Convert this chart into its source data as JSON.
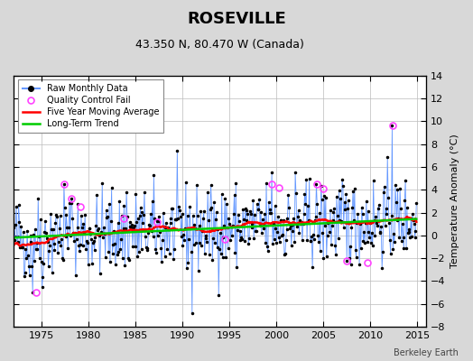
{
  "title": "ROSEVILLE",
  "subtitle": "43.350 N, 80.470 W (Canada)",
  "ylabel": "Temperature Anomaly (°C)",
  "credit": "Berkeley Earth",
  "ylim": [
    -8,
    14
  ],
  "yticks": [
    -8,
    -6,
    -4,
    -2,
    0,
    2,
    4,
    6,
    8,
    10,
    12,
    14
  ],
  "xlim": [
    1972,
    2016
  ],
  "xticks": [
    1975,
    1980,
    1985,
    1990,
    1995,
    2000,
    2005,
    2010,
    2015
  ],
  "bg_color": "#d8d8d8",
  "plot_bg_color": "#ffffff",
  "raw_line_color": "#6699ff",
  "raw_marker_color": "#000000",
  "ma_color": "#ff0000",
  "trend_color": "#00cc00",
  "qc_color": "#ff44ff",
  "seed": 42,
  "qc_points": [
    [
      1974.4,
      -5.0
    ],
    [
      1977.4,
      4.5
    ],
    [
      1978.2,
      3.2
    ],
    [
      1979.1,
      2.5
    ],
    [
      1983.7,
      1.5
    ],
    [
      1987.3,
      1.2
    ],
    [
      1994.5,
      -0.3
    ],
    [
      1999.5,
      4.5
    ],
    [
      2000.3,
      4.2
    ],
    [
      2004.3,
      4.5
    ],
    [
      2005.0,
      4.1
    ],
    [
      2007.5,
      -2.2
    ],
    [
      2009.7,
      -2.4
    ],
    [
      2012.4,
      9.6
    ]
  ]
}
